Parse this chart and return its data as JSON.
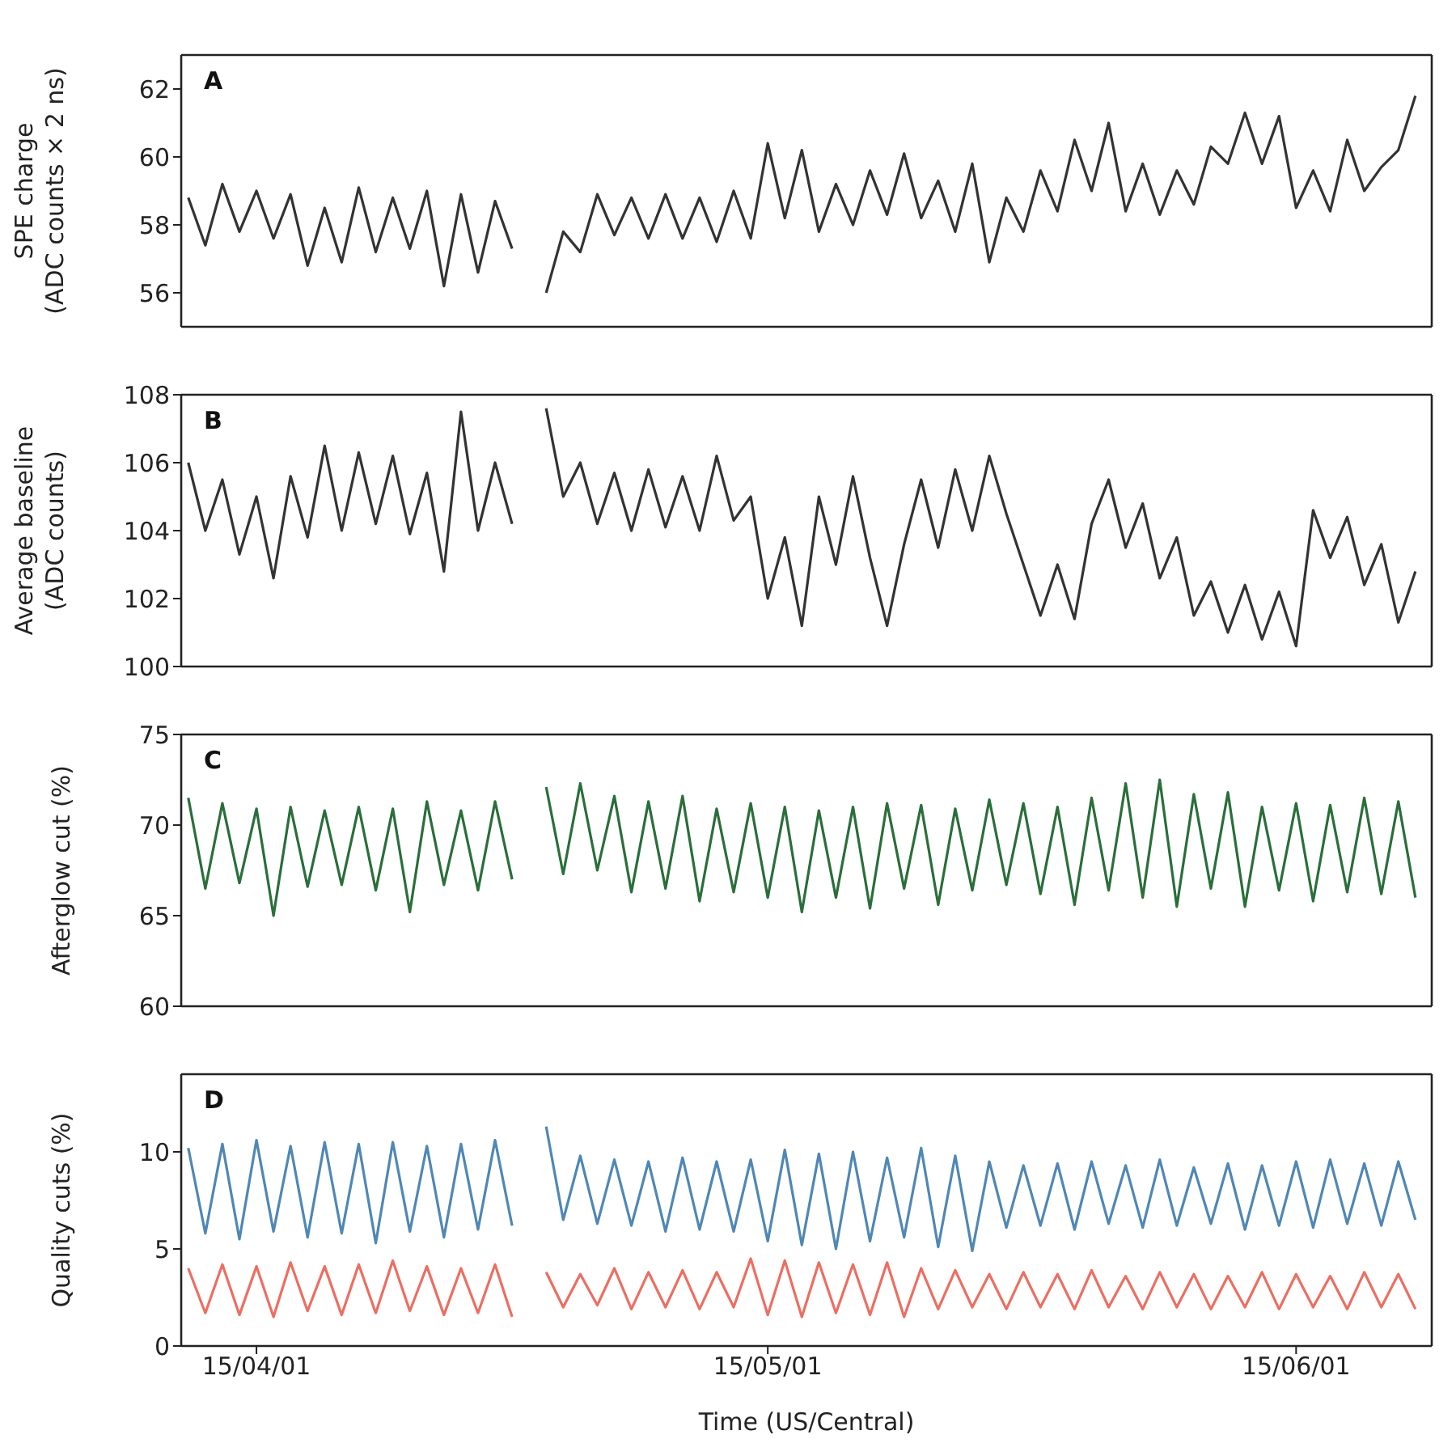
{
  "chart_data": [
    {
      "type": "line",
      "ylabel": "SPE charge (ADC counts × 2 ns)",
      "annotations": [
        "A"
      ],
      "tick_labels": "y",
      "grid": false,
      "legend": false,
      "marker": "none",
      "line_style": "solid",
      "x": [
        "--03-28",
        "--03-29",
        "--03-30",
        "--03-31",
        "--04-01",
        "--04-02",
        "--04-03",
        "--04-04",
        "--04-05",
        "--04-06",
        "--04-07",
        "--04-08",
        "--04-09",
        "--04-10",
        "--04-11",
        "--04-12",
        "--04-13",
        "--04-14",
        "--04-15",
        "--04-16",
        "--04-17",
        "--04-18",
        "--04-19",
        "--04-20",
        "--04-21",
        "--04-22",
        "--04-23",
        "--04-24",
        "--04-25",
        "--04-26",
        "--04-27",
        "--04-28",
        "--04-29",
        "--04-30",
        "--05-01",
        "--05-02",
        "--05-03",
        "--05-04",
        "--05-05",
        "--05-06",
        "--05-07",
        "--05-08",
        "--05-09",
        "--05-10",
        "--05-11",
        "--05-12",
        "--05-13",
        "--05-14",
        "--05-15",
        "--05-16",
        "--05-17",
        "--05-18",
        "--05-19",
        "--05-20",
        "--05-21",
        "--05-22",
        "--05-23",
        "--05-24",
        "--05-25",
        "--05-26",
        "--05-27",
        "--05-28",
        "--05-29",
        "--05-30",
        "--05-31",
        "--06-01",
        "--06-02",
        "--06-03",
        "--06-04",
        "--06-05",
        "--06-06",
        "--06-07",
        "--06-08"
      ],
      "xlim": [
        "--03-27T14:00",
        "--06-08T23:00"
      ],
      "xticks": [
        {
          "value": "--04-01",
          "label": null
        },
        {
          "value": "--05-01",
          "label": null
        },
        {
          "value": "--06-01",
          "label": null
        }
      ],
      "ylim": [
        55,
        63
      ],
      "yticks": [
        56,
        58,
        60,
        62
      ],
      "series": [
        {
          "color": "#333333",
          "values": [
            58.8,
            57.4,
            59.2,
            57.8,
            59.0,
            57.6,
            58.9,
            56.8,
            58.5,
            56.9,
            59.1,
            57.2,
            58.8,
            57.3,
            59.0,
            56.2,
            58.9,
            56.6,
            58.7,
            57.3,
            null,
            56.0,
            57.8,
            57.2,
            58.9,
            57.7,
            58.8,
            57.6,
            58.9,
            57.6,
            58.8,
            57.5,
            59.0,
            57.6,
            60.4,
            58.2,
            60.2,
            57.8,
            59.2,
            58.0,
            59.6,
            58.3,
            60.1,
            58.2,
            59.3,
            57.8,
            59.8,
            56.9,
            58.8,
            57.8,
            59.6,
            58.4,
            60.5,
            59.0,
            61.0,
            58.4,
            59.8,
            58.3,
            59.6,
            58.6,
            60.3,
            59.8,
            61.3,
            59.8,
            61.2,
            58.5,
            59.6,
            58.4,
            60.5,
            59.0,
            59.7,
            60.2,
            61.8
          ]
        }
      ]
    },
    {
      "type": "line",
      "ylabel": "Average baseline (ADC counts)",
      "annotations": [
        "B"
      ],
      "tick_labels": "y",
      "grid": false,
      "legend": false,
      "marker": "none",
      "line_style": "solid",
      "x": [
        "--03-28",
        "--03-29",
        "--03-30",
        "--03-31",
        "--04-01",
        "--04-02",
        "--04-03",
        "--04-04",
        "--04-05",
        "--04-06",
        "--04-07",
        "--04-08",
        "--04-09",
        "--04-10",
        "--04-11",
        "--04-12",
        "--04-13",
        "--04-14",
        "--04-15",
        "--04-16",
        "--04-17",
        "--04-18",
        "--04-19",
        "--04-20",
        "--04-21",
        "--04-22",
        "--04-23",
        "--04-24",
        "--04-25",
        "--04-26",
        "--04-27",
        "--04-28",
        "--04-29",
        "--04-30",
        "--05-01",
        "--05-02",
        "--05-03",
        "--05-04",
        "--05-05",
        "--05-06",
        "--05-07",
        "--05-08",
        "--05-09",
        "--05-10",
        "--05-11",
        "--05-12",
        "--05-13",
        "--05-14",
        "--05-15",
        "--05-16",
        "--05-17",
        "--05-18",
        "--05-19",
        "--05-20",
        "--05-21",
        "--05-22",
        "--05-23",
        "--05-24",
        "--05-25",
        "--05-26",
        "--05-27",
        "--05-28",
        "--05-29",
        "--05-30",
        "--05-31",
        "--06-01",
        "--06-02",
        "--06-03",
        "--06-04",
        "--06-05",
        "--06-06",
        "--06-07",
        "--06-08"
      ],
      "xlim": [
        "--03-27T14:00",
        "--06-08T23:00"
      ],
      "xticks": [
        {
          "value": "--04-01",
          "label": null
        },
        {
          "value": "--05-01",
          "label": null
        },
        {
          "value": "--06-01",
          "label": null
        }
      ],
      "ylim": [
        100,
        108
      ],
      "yticks": [
        100,
        102,
        104,
        106,
        108
      ],
      "series": [
        {
          "color": "#333333",
          "values": [
            106.0,
            104.0,
            105.5,
            103.3,
            105.0,
            102.6,
            105.6,
            103.8,
            106.5,
            104.0,
            106.3,
            104.2,
            106.2,
            103.9,
            105.7,
            102.8,
            107.5,
            104.0,
            106.0,
            104.2,
            null,
            107.6,
            105.0,
            106.0,
            104.2,
            105.7,
            104.0,
            105.8,
            104.1,
            105.6,
            104.0,
            106.2,
            104.3,
            105.0,
            102.0,
            103.8,
            101.2,
            105.0,
            103.0,
            105.6,
            103.2,
            101.2,
            103.6,
            105.5,
            103.5,
            105.8,
            104.0,
            106.2,
            104.5,
            103.0,
            101.5,
            103.0,
            101.4,
            104.2,
            105.5,
            103.5,
            104.8,
            102.6,
            103.8,
            101.5,
            102.5,
            101.0,
            102.4,
            100.8,
            102.2,
            100.6,
            104.6,
            103.2,
            104.4,
            102.4,
            103.6,
            101.3,
            102.8
          ]
        }
      ]
    },
    {
      "type": "line",
      "ylabel": "Afterglow cut (%)",
      "annotations": [
        "C"
      ],
      "tick_labels": "y",
      "grid": false,
      "legend": false,
      "marker": "none",
      "line_style": "solid",
      "x": [
        "--03-28",
        "--03-29",
        "--03-30",
        "--03-31",
        "--04-01",
        "--04-02",
        "--04-03",
        "--04-04",
        "--04-05",
        "--04-06",
        "--04-07",
        "--04-08",
        "--04-09",
        "--04-10",
        "--04-11",
        "--04-12",
        "--04-13",
        "--04-14",
        "--04-15",
        "--04-16",
        "--04-17",
        "--04-18",
        "--04-19",
        "--04-20",
        "--04-21",
        "--04-22",
        "--04-23",
        "--04-24",
        "--04-25",
        "--04-26",
        "--04-27",
        "--04-28",
        "--04-29",
        "--04-30",
        "--05-01",
        "--05-02",
        "--05-03",
        "--05-04",
        "--05-05",
        "--05-06",
        "--05-07",
        "--05-08",
        "--05-09",
        "--05-10",
        "--05-11",
        "--05-12",
        "--05-13",
        "--05-14",
        "--05-15",
        "--05-16",
        "--05-17",
        "--05-18",
        "--05-19",
        "--05-20",
        "--05-21",
        "--05-22",
        "--05-23",
        "--05-24",
        "--05-25",
        "--05-26",
        "--05-27",
        "--05-28",
        "--05-29",
        "--05-30",
        "--05-31",
        "--06-01",
        "--06-02",
        "--06-03",
        "--06-04",
        "--06-05",
        "--06-06",
        "--06-07",
        "--06-08"
      ],
      "xlim": [
        "--03-27T14:00",
        "--06-08T23:00"
      ],
      "xticks": [
        {
          "value": "--04-01",
          "label": null
        },
        {
          "value": "--05-01",
          "label": null
        },
        {
          "value": "--06-01",
          "label": null
        }
      ],
      "ylim": [
        60,
        75
      ],
      "yticks": [
        60,
        65,
        70,
        75
      ],
      "series": [
        {
          "color": "#2a6e3a",
          "values": [
            71.5,
            66.5,
            71.2,
            66.8,
            70.9,
            65.0,
            71.0,
            66.6,
            70.8,
            66.7,
            71.0,
            66.4,
            70.9,
            65.2,
            71.3,
            66.7,
            70.8,
            66.4,
            71.3,
            67.0,
            null,
            72.1,
            67.3,
            72.3,
            67.5,
            71.6,
            66.3,
            71.3,
            66.5,
            71.6,
            65.8,
            70.9,
            66.3,
            71.2,
            66.0,
            71.0,
            65.2,
            70.8,
            66.0,
            71.0,
            65.4,
            71.2,
            66.5,
            71.1,
            65.6,
            70.9,
            66.4,
            71.4,
            66.7,
            71.2,
            66.2,
            71.0,
            65.6,
            71.5,
            66.4,
            72.3,
            66.0,
            72.5,
            65.5,
            71.7,
            66.5,
            71.8,
            65.5,
            71.0,
            66.4,
            71.2,
            65.8,
            71.1,
            66.3,
            71.5,
            66.2,
            71.3,
            66.0
          ]
        }
      ]
    },
    {
      "type": "line",
      "ylabel": "Quality cuts (%)",
      "xlabel": "Time (US/Central)",
      "annotations": [
        "D"
      ],
      "grid": false,
      "legend": false,
      "marker": "none",
      "line_style": "solid",
      "x": [
        "--03-28",
        "--03-29",
        "--03-30",
        "--03-31",
        "--04-01",
        "--04-02",
        "--04-03",
        "--04-04",
        "--04-05",
        "--04-06",
        "--04-07",
        "--04-08",
        "--04-09",
        "--04-10",
        "--04-11",
        "--04-12",
        "--04-13",
        "--04-14",
        "--04-15",
        "--04-16",
        "--04-17",
        "--04-18",
        "--04-19",
        "--04-20",
        "--04-21",
        "--04-22",
        "--04-23",
        "--04-24",
        "--04-25",
        "--04-26",
        "--04-27",
        "--04-28",
        "--04-29",
        "--04-30",
        "--05-01",
        "--05-02",
        "--05-03",
        "--05-04",
        "--05-05",
        "--05-06",
        "--05-07",
        "--05-08",
        "--05-09",
        "--05-10",
        "--05-11",
        "--05-12",
        "--05-13",
        "--05-14",
        "--05-15",
        "--05-16",
        "--05-17",
        "--05-18",
        "--05-19",
        "--05-20",
        "--05-21",
        "--05-22",
        "--05-23",
        "--05-24",
        "--05-25",
        "--05-26",
        "--05-27",
        "--05-28",
        "--05-29",
        "--05-30",
        "--05-31",
        "--06-01",
        "--06-02",
        "--06-03",
        "--06-04",
        "--06-05",
        "--06-06",
        "--06-07",
        "--06-08"
      ],
      "xlim": [
        "--03-27T14:00",
        "--06-08T23:00"
      ],
      "xticks": [
        {
          "value": "--04-01",
          "label": "15/04/01"
        },
        {
          "value": "--05-01",
          "label": "15/05/01"
        },
        {
          "value": "--06-01",
          "label": "15/06/01"
        }
      ],
      "ylim": [
        0,
        14
      ],
      "yticks": [
        0,
        5,
        10
      ],
      "series": [
        {
          "color": "#4f87b5",
          "values": [
            10.2,
            5.8,
            10.4,
            5.5,
            10.6,
            5.9,
            10.3,
            5.6,
            10.5,
            5.8,
            10.4,
            5.3,
            10.5,
            5.9,
            10.3,
            5.6,
            10.4,
            6.0,
            10.6,
            6.2,
            null,
            11.3,
            6.5,
            9.8,
            6.3,
            9.6,
            6.2,
            9.5,
            5.9,
            9.7,
            6.0,
            9.5,
            5.9,
            9.6,
            5.4,
            10.1,
            5.2,
            9.9,
            5.0,
            10.0,
            5.4,
            9.7,
            5.6,
            10.2,
            5.1,
            9.8,
            4.9,
            9.5,
            6.1,
            9.3,
            6.2,
            9.4,
            6.0,
            9.5,
            6.3,
            9.3,
            6.1,
            9.6,
            6.2,
            9.2,
            6.3,
            9.4,
            6.0,
            9.3,
            6.2,
            9.5,
            6.1,
            9.6,
            6.3,
            9.4,
            6.2,
            9.5,
            6.5
          ]
        },
        {
          "color": "#ec6e62",
          "values": [
            4.0,
            1.7,
            4.2,
            1.6,
            4.1,
            1.5,
            4.3,
            1.8,
            4.1,
            1.6,
            4.2,
            1.7,
            4.4,
            1.8,
            4.1,
            1.6,
            4.0,
            1.7,
            4.2,
            1.5,
            null,
            3.8,
            2.0,
            3.7,
            2.1,
            4.0,
            1.9,
            3.8,
            2.0,
            3.9,
            1.9,
            3.8,
            2.0,
            4.5,
            1.6,
            4.4,
            1.5,
            4.3,
            1.7,
            4.2,
            1.6,
            4.3,
            1.5,
            4.0,
            1.9,
            3.9,
            2.0,
            3.7,
            1.9,
            3.8,
            2.0,
            3.7,
            1.9,
            3.9,
            2.0,
            3.6,
            1.9,
            3.8,
            2.0,
            3.7,
            1.9,
            3.6,
            2.0,
            3.8,
            1.9,
            3.7,
            2.0,
            3.6,
            1.9,
            3.8,
            2.0,
            3.7,
            1.9
          ]
        }
      ]
    }
  ]
}
